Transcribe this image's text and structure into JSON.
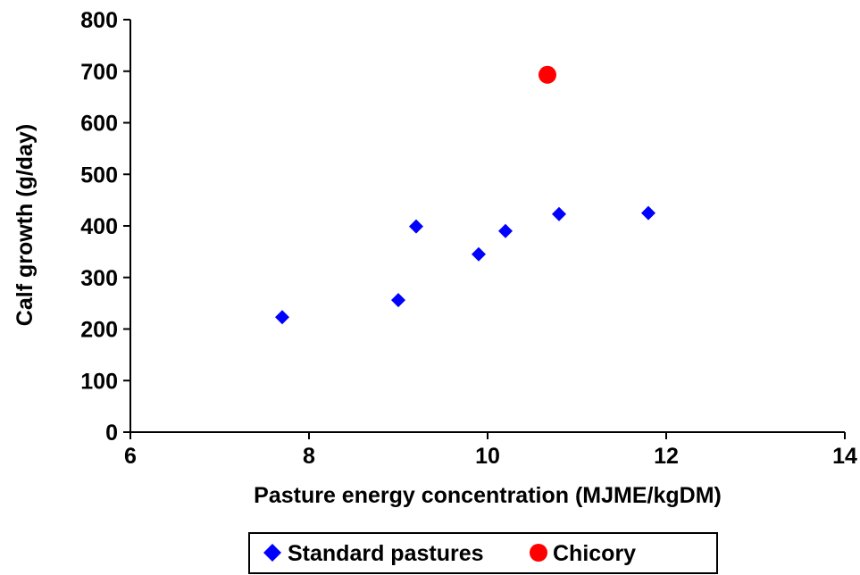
{
  "chart_data": {
    "type": "scatter",
    "title": "",
    "xlabel": "Pasture energy concentration (MJME/kgDM)",
    "ylabel": "Calf growth (g/day)",
    "xlim": [
      6,
      14
    ],
    "ylim": [
      0,
      800
    ],
    "x_ticks": [
      "6",
      "8",
      "10",
      "12",
      "14"
    ],
    "y_ticks": [
      "0",
      "100",
      "200",
      "300",
      "400",
      "500",
      "600",
      "700",
      "800"
    ],
    "grid": false,
    "legend_position": "bottom-center",
    "series": [
      {
        "name": "Standard pastures",
        "marker": "diamond",
        "color": "#0000ff",
        "points": [
          {
            "x": 7.7,
            "y": 223
          },
          {
            "x": 9.0,
            "y": 256
          },
          {
            "x": 9.2,
            "y": 399
          },
          {
            "x": 9.9,
            "y": 345
          },
          {
            "x": 10.2,
            "y": 390
          },
          {
            "x": 10.8,
            "y": 423
          },
          {
            "x": 11.8,
            "y": 425
          }
        ]
      },
      {
        "name": "Chicory",
        "marker": "circle",
        "color": "#ff0000",
        "points": [
          {
            "x": 10.67,
            "y": 693
          }
        ]
      }
    ]
  }
}
